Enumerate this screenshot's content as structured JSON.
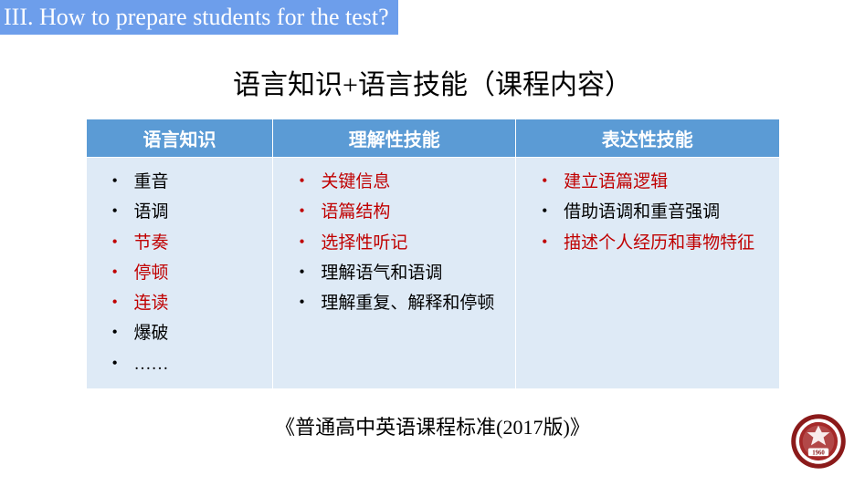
{
  "header": {
    "title": "III. How to prepare students for the test?"
  },
  "main_title": "语言知识+语言技能（课程内容）",
  "table": {
    "headers": [
      "语言知识",
      "理解性技能",
      "表达性技能"
    ],
    "header_bg": "#5b9bd5",
    "header_fg": "#ffffff",
    "cell_bg": "#deeaf6",
    "col1": [
      {
        "text": "重音",
        "color": "black"
      },
      {
        "text": "语调",
        "color": "black"
      },
      {
        "text": "节奏",
        "color": "red"
      },
      {
        "text": "停顿",
        "color": "red"
      },
      {
        "text": "连读",
        "color": "red"
      },
      {
        "text": "爆破",
        "color": "black"
      },
      {
        "text": "……",
        "color": "black"
      }
    ],
    "col2": [
      {
        "text": "关键信息",
        "color": "red"
      },
      {
        "text": "语篇结构",
        "color": "red"
      },
      {
        "text": "选择性听记",
        "color": "red"
      },
      {
        "text": "理解语气和语调",
        "color": "black"
      },
      {
        "text": "理解重复、解释和停顿",
        "color": "black"
      }
    ],
    "col3": [
      {
        "text": "建立语篇逻辑",
        "color": "red"
      },
      {
        "text": "借助语调和重音强调",
        "color": "black"
      },
      {
        "text": "描述个人经历和事物特征",
        "color": "red"
      }
    ]
  },
  "footnote": "《普通高中英语课程标准(2017版)》",
  "logo": {
    "year": "1960",
    "ring_color": "#8b1a1a",
    "inner_color": "#a52929"
  },
  "colors": {
    "header_band_bg": "#6d9eeb",
    "header_band_fg": "#ffffff",
    "red_text": "#c00000",
    "black_text": "#000000"
  }
}
